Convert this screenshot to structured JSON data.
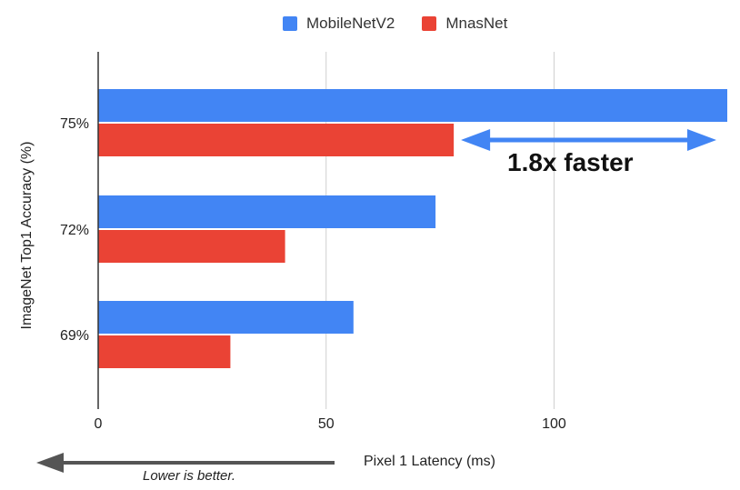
{
  "colors": {
    "series1": "#4285f4",
    "series2": "#ea4335",
    "grid": "#d0d0d0",
    "axis": "#333333",
    "arrow": "#555555"
  },
  "legend": {
    "items": [
      "MobileNetV2",
      "MnasNet"
    ]
  },
  "chart_data": {
    "type": "bar",
    "orientation": "horizontal",
    "categories": [
      "75%",
      "72%",
      "69%"
    ],
    "series": [
      {
        "name": "MobileNetV2",
        "values": [
          138,
          74,
          56
        ]
      },
      {
        "name": "MnasNet",
        "values": [
          78,
          41,
          29
        ]
      }
    ],
    "xlabel": "Pixel 1 Latency (ms)",
    "ylabel": "ImageNet Top1 Accuracy (%)",
    "xlim": [
      0,
      138
    ],
    "xticks": [
      0,
      50,
      100
    ],
    "grid": true,
    "legend_position": "top",
    "annotations": [
      {
        "text": "1.8x faster",
        "from_value": 78,
        "to_value": 138
      },
      {
        "text": "Lower is better."
      }
    ]
  }
}
